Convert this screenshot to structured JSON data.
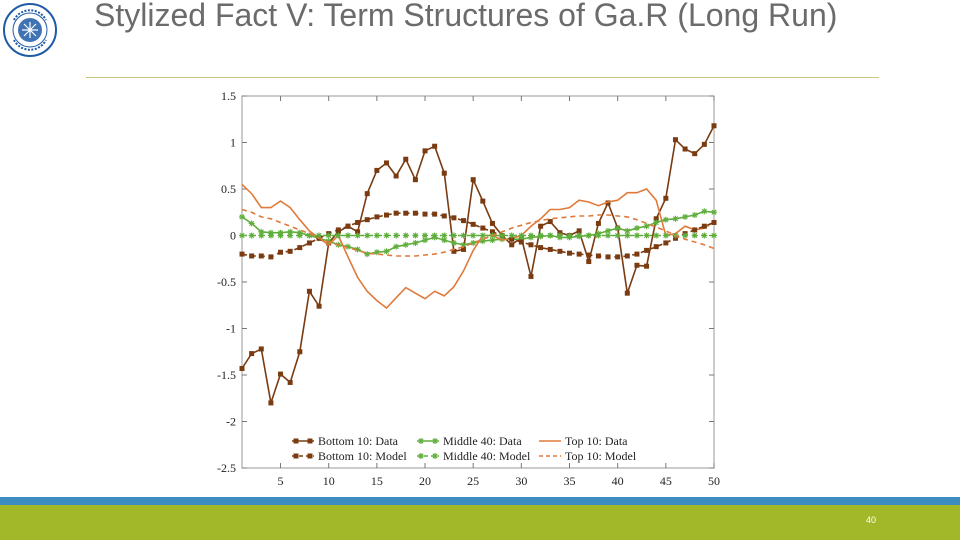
{
  "slide": {
    "title": "Stylized Fact V: Term Structures of Ga.R (Long Run)",
    "page_number": "40",
    "logo": {
      "icon": "imf-seal",
      "text": "INTERNATIONAL MONETARY FUND"
    },
    "colors": {
      "title_rule": "#c9c57a",
      "footer_blue": "#3b8cc0",
      "footer_green": "#a2b828"
    }
  },
  "chart_data": {
    "type": "line",
    "title": "",
    "xlabel": "",
    "ylabel": "",
    "xlim": [
      1,
      50
    ],
    "ylim": [
      -2.5,
      1.5
    ],
    "x_ticks": [
      5,
      10,
      15,
      20,
      25,
      30,
      35,
      40,
      45,
      50
    ],
    "y_ticks": [
      1.5,
      1,
      0.5,
      0,
      -0.5,
      -1,
      -1.5,
      -2,
      -2.5
    ],
    "y_tick_labels": [
      "1.5",
      "1",
      "0.5",
      "0",
      "-0.5",
      "-1",
      "-1.5",
      "-2",
      "-2.5"
    ],
    "grid": false,
    "legend_position": "bottom",
    "series": [
      {
        "name": "Bottom 10: Data",
        "color": "#7a3b10",
        "dash": "solid",
        "marker": "square",
        "x": [
          1,
          2,
          3,
          4,
          5,
          6,
          7,
          8,
          9,
          10,
          11,
          12,
          13,
          14,
          15,
          16,
          17,
          18,
          19,
          20,
          21,
          22,
          23,
          24,
          25,
          26,
          27,
          28,
          29,
          30,
          31,
          32,
          33,
          34,
          35,
          36,
          37,
          38,
          39,
          40,
          41,
          42,
          43,
          44,
          45,
          46,
          47,
          48,
          49,
          50
        ],
        "y": [
          -1.43,
          -1.27,
          -1.22,
          -1.8,
          -1.49,
          -1.58,
          -1.25,
          -0.6,
          -0.76,
          -0.08,
          0.04,
          0.1,
          0.04,
          0.45,
          0.7,
          0.78,
          0.64,
          0.82,
          0.6,
          0.91,
          0.96,
          0.67,
          -0.17,
          -0.15,
          0.6,
          0.37,
          0.13,
          0.0,
          -0.1,
          -0.02,
          -0.44,
          0.1,
          0.15,
          0.03,
          0.0,
          0.05,
          -0.28,
          0.13,
          0.35,
          0.08,
          -0.62,
          -0.32,
          -0.33,
          0.18,
          0.4,
          1.03,
          0.93,
          0.88,
          0.98,
          1.18
        ]
      },
      {
        "name": "Middle 40: Data",
        "color": "#5fae3c",
        "dash": "solid",
        "marker": "star",
        "x": [
          1,
          2,
          3,
          4,
          5,
          6,
          7,
          8,
          9,
          10,
          11,
          12,
          13,
          14,
          15,
          16,
          17,
          18,
          19,
          20,
          21,
          22,
          23,
          24,
          25,
          26,
          27,
          28,
          29,
          30,
          31,
          32,
          33,
          34,
          35,
          36,
          37,
          38,
          39,
          40,
          41,
          42,
          43,
          44,
          45,
          46,
          47,
          48,
          49,
          50
        ],
        "y": [
          0.2,
          0.13,
          0.04,
          0.03,
          0.03,
          0.04,
          0.03,
          0.0,
          -0.03,
          -0.06,
          -0.1,
          -0.12,
          -0.15,
          -0.2,
          -0.18,
          -0.17,
          -0.12,
          -0.1,
          -0.08,
          -0.05,
          -0.02,
          -0.05,
          -0.08,
          -0.1,
          -0.08,
          -0.06,
          -0.05,
          -0.04,
          -0.04,
          -0.04,
          -0.02,
          -0.01,
          0.0,
          -0.02,
          -0.02,
          -0.01,
          0.0,
          0.02,
          0.05,
          0.08,
          0.05,
          0.08,
          0.1,
          0.14,
          0.17,
          0.18,
          0.2,
          0.22,
          0.26,
          0.25
        ]
      },
      {
        "name": "Top 10: Data",
        "color": "#e07a3a",
        "dash": "solid",
        "marker": "none",
        "x": [
          1,
          2,
          3,
          4,
          5,
          6,
          7,
          8,
          9,
          10,
          11,
          12,
          13,
          14,
          15,
          16,
          17,
          18,
          19,
          20,
          21,
          22,
          23,
          24,
          25,
          26,
          27,
          28,
          29,
          30,
          31,
          32,
          33,
          34,
          35,
          36,
          37,
          38,
          39,
          40,
          41,
          42,
          43,
          44,
          45,
          46,
          47,
          48,
          49,
          50
        ],
        "y": [
          0.55,
          0.45,
          0.3,
          0.3,
          0.37,
          0.3,
          0.17,
          0.05,
          -0.03,
          -0.1,
          0.0,
          -0.23,
          -0.45,
          -0.6,
          -0.7,
          -0.78,
          -0.67,
          -0.56,
          -0.62,
          -0.68,
          -0.6,
          -0.65,
          -0.55,
          -0.38,
          -0.16,
          0.0,
          0.0,
          -0.05,
          -0.03,
          0.0,
          0.1,
          0.18,
          0.28,
          0.28,
          0.3,
          0.38,
          0.36,
          0.32,
          0.36,
          0.38,
          0.46,
          0.46,
          0.5,
          0.38,
          0.0,
          0.02,
          0.1,
          0.06,
          0.08,
          0.15
        ]
      },
      {
        "name": "Bottom 10: Model",
        "color": "#7a3b10",
        "dash": "dashed",
        "marker": "square",
        "x": [
          1,
          2,
          3,
          4,
          5,
          6,
          7,
          8,
          9,
          10,
          11,
          12,
          13,
          14,
          15,
          16,
          17,
          18,
          19,
          20,
          21,
          22,
          23,
          24,
          25,
          26,
          27,
          28,
          29,
          30,
          31,
          32,
          33,
          34,
          35,
          36,
          37,
          38,
          39,
          40,
          41,
          42,
          43,
          44,
          45,
          46,
          47,
          48,
          49,
          50
        ],
        "y": [
          -0.2,
          -0.22,
          -0.22,
          -0.23,
          -0.18,
          -0.17,
          -0.13,
          -0.08,
          -0.03,
          0.02,
          0.06,
          0.1,
          0.14,
          0.17,
          0.2,
          0.22,
          0.24,
          0.24,
          0.24,
          0.23,
          0.23,
          0.21,
          0.19,
          0.16,
          0.12,
          0.08,
          0.04,
          0.0,
          -0.04,
          -0.07,
          -0.1,
          -0.13,
          -0.15,
          -0.17,
          -0.19,
          -0.2,
          -0.21,
          -0.22,
          -0.23,
          -0.23,
          -0.22,
          -0.2,
          -0.16,
          -0.12,
          -0.08,
          -0.03,
          0.02,
          0.06,
          0.1,
          0.14
        ]
      },
      {
        "name": "Middle 40: Model",
        "color": "#5fae3c",
        "dash": "dashed",
        "marker": "star",
        "x": [
          1,
          2,
          3,
          4,
          5,
          6,
          7,
          8,
          9,
          10,
          11,
          12,
          13,
          14,
          15,
          16,
          17,
          18,
          19,
          20,
          21,
          22,
          23,
          24,
          25,
          26,
          27,
          28,
          29,
          30,
          31,
          32,
          33,
          34,
          35,
          36,
          37,
          38,
          39,
          40,
          41,
          42,
          43,
          44,
          45,
          46,
          47,
          48,
          49,
          50
        ],
        "y": [
          0.0,
          0.0,
          0.0,
          0.0,
          0.0,
          0.0,
          0.0,
          0.0,
          0.0,
          0.0,
          0.0,
          0.0,
          0.0,
          0.0,
          0.0,
          0.0,
          0.0,
          0.0,
          0.0,
          0.0,
          0.0,
          0.0,
          0.0,
          0.0,
          0.0,
          0.0,
          0.0,
          0.0,
          0.0,
          0.0,
          0.0,
          0.0,
          0.0,
          0.0,
          0.0,
          0.0,
          0.0,
          0.0,
          0.0,
          0.0,
          0.0,
          0.0,
          0.0,
          0.0,
          0.0,
          0.0,
          0.0,
          0.0,
          0.0,
          0.0
        ]
      },
      {
        "name": "Top 10: Model",
        "color": "#e07a3a",
        "dash": "dashed",
        "marker": "none",
        "x": [
          1,
          2,
          3,
          4,
          5,
          6,
          7,
          8,
          9,
          10,
          11,
          12,
          13,
          14,
          15,
          16,
          17,
          18,
          19,
          20,
          21,
          22,
          23,
          24,
          25,
          26,
          27,
          28,
          29,
          30,
          31,
          32,
          33,
          34,
          35,
          36,
          37,
          38,
          39,
          40,
          41,
          42,
          43,
          44,
          45,
          46,
          47,
          48,
          49,
          50
        ],
        "y": [
          0.28,
          0.25,
          0.2,
          0.18,
          0.14,
          0.1,
          0.06,
          0.02,
          -0.03,
          -0.07,
          -0.1,
          -0.13,
          -0.16,
          -0.19,
          -0.2,
          -0.21,
          -0.22,
          -0.22,
          -0.22,
          -0.21,
          -0.2,
          -0.18,
          -0.15,
          -0.12,
          -0.08,
          -0.04,
          0.0,
          0.04,
          0.08,
          0.11,
          0.14,
          0.16,
          0.18,
          0.19,
          0.2,
          0.21,
          0.21,
          0.22,
          0.22,
          0.21,
          0.2,
          0.17,
          0.13,
          0.09,
          0.05,
          0.0,
          -0.04,
          -0.07,
          -0.1,
          -0.14
        ]
      }
    ]
  }
}
